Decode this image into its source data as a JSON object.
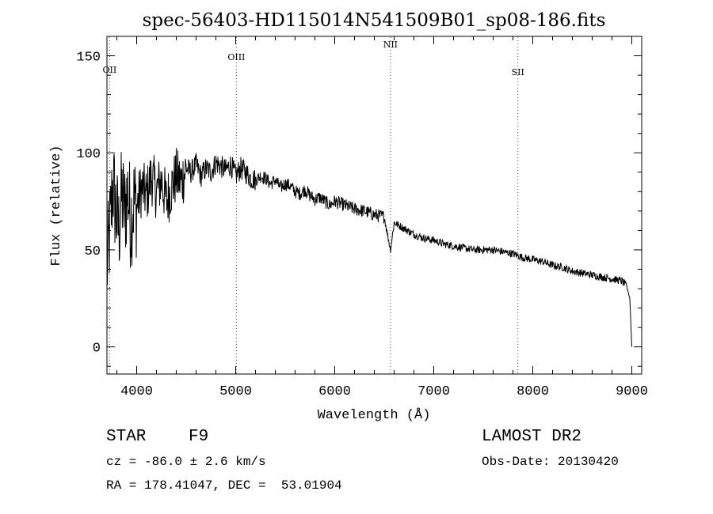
{
  "chart_data": {
    "type": "line",
    "title": "spec-56403-HD115014N541509B01_sp08-186.fits",
    "xlabel": "Wavelength (Å)",
    "ylabel": "Flux (relative)",
    "xlim": [
      3700,
      9100
    ],
    "ylim": [
      -14,
      160
    ],
    "x_ticks": [
      4000,
      5000,
      6000,
      7000,
      8000,
      9000
    ],
    "y_ticks": [
      0,
      50,
      100,
      150
    ],
    "grid": false,
    "lines": [
      {
        "label": "OII",
        "x": 3727
      },
      {
        "label": "OIII",
        "x": 5007
      },
      {
        "label": "NII",
        "x": 6563
      },
      {
        "label": "SII",
        "x": 7850
      }
    ],
    "series": [
      {
        "x": [
          3700,
          3730,
          3760,
          3790,
          3820,
          3850,
          3880,
          3910,
          3940,
          3970,
          4000,
          4050,
          4100,
          4150,
          4200,
          4250,
          4300,
          4350,
          4400,
          4450,
          4500,
          4550,
          4600,
          4650,
          4700,
          4750,
          4800,
          4850,
          4900,
          4950,
          5000,
          5050,
          5100,
          5150,
          5200,
          5250,
          5300,
          5350,
          5400,
          5450,
          5500,
          5550,
          5600,
          5650,
          5700,
          5750,
          5800,
          5850,
          5900,
          5950,
          6000,
          6100,
          6200,
          6300,
          6400,
          6500,
          6563,
          6600,
          6700,
          6800,
          6900,
          7000,
          7100,
          7200,
          7300,
          7400,
          7500,
          7600,
          7700,
          7800,
          7900,
          8000,
          8100,
          8200,
          8300,
          8400,
          8500,
          8600,
          8700,
          8800,
          8900,
          8950,
          8980,
          9000
        ],
        "y": [
          40,
          60,
          85,
          70,
          60,
          78,
          70,
          80,
          65,
          75,
          72,
          82,
          78,
          88,
          80,
          86,
          75,
          82,
          88,
          85,
          92,
          90,
          94,
          88,
          92,
          90,
          95,
          93,
          91,
          94,
          88,
          92,
          90,
          87,
          86,
          88,
          87,
          84,
          86,
          82,
          84,
          83,
          80,
          79,
          81,
          78,
          76,
          77,
          75,
          73,
          75,
          73,
          71,
          70,
          68,
          67,
          50,
          64,
          61,
          58,
          56,
          55,
          53,
          52,
          51,
          50,
          50,
          50,
          49,
          48,
          46,
          45,
          44,
          42,
          41,
          39,
          38,
          37,
          36,
          35,
          34,
          31,
          25,
          0
        ]
      }
    ]
  },
  "footer": {
    "object_type": "STAR",
    "subclass": "F9",
    "survey": "LAMOST DR2",
    "redshift": "cz = -86.0 ± 2.6 km/s",
    "obs_date": "Obs-Date: 20130420",
    "coords": "RA = 178.41047, DEC =  53.01904"
  }
}
